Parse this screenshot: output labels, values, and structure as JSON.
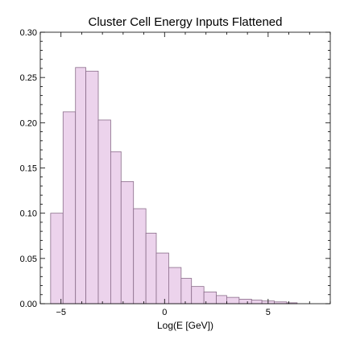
{
  "chart_data": {
    "type": "bar",
    "subtype": "histogram",
    "title": "Cluster Cell Energy Inputs Flattened",
    "xlabel": "Log(E [GeV])",
    "ylabel": "",
    "xlim": [
      -6.0,
      8.0
    ],
    "ylim": [
      0,
      0.3
    ],
    "x_ticks": [
      {
        "value": -5,
        "label": "−5"
      },
      {
        "value": 0,
        "label": "0"
      },
      {
        "value": 5,
        "label": "5"
      }
    ],
    "y_ticks": [
      {
        "value": 0.0,
        "label": "0.00"
      },
      {
        "value": 0.05,
        "label": "0.05"
      },
      {
        "value": 0.1,
        "label": "0.10"
      },
      {
        "value": 0.15,
        "label": "0.15"
      },
      {
        "value": 0.2,
        "label": "0.20"
      },
      {
        "value": 0.25,
        "label": "0.25"
      },
      {
        "value": 0.3,
        "label": "0.30"
      }
    ],
    "grid": false,
    "bin_edges": [
      -5.5,
      -4.9,
      -4.3,
      -3.8,
      -3.2,
      -2.6,
      -2.1,
      -1.5,
      -0.9,
      -0.4,
      0.2,
      0.8,
      1.3,
      1.9,
      2.5,
      3.0,
      3.6,
      4.2,
      4.7,
      5.3,
      5.9,
      6.4
    ],
    "values": [
      0.1,
      0.212,
      0.261,
      0.257,
      0.203,
      0.168,
      0.135,
      0.105,
      0.078,
      0.056,
      0.04,
      0.028,
      0.019,
      0.013,
      0.009,
      0.007,
      0.005,
      0.004,
      0.003,
      0.002,
      0.001
    ],
    "colors": {
      "fill": "#ecd3ec",
      "edge": "#8a6d8a",
      "frame": "#000000"
    }
  }
}
